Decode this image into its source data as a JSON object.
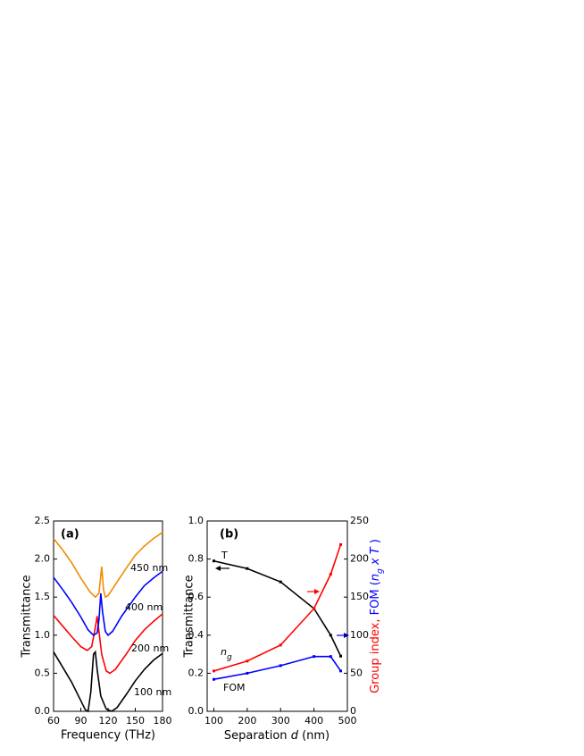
{
  "chart_data": [
    {
      "type": "line",
      "panel_label": "(a)",
      "xlabel": "Frequency (THz)",
      "ylabel": "Transmittance",
      "xlim": [
        60,
        180
      ],
      "xticks": [
        60,
        90,
        120,
        150,
        180
      ],
      "ylim": [
        0,
        2.5
      ],
      "yticks": [
        {
          "value": 0,
          "label": "0.0"
        },
        {
          "value": 0.5,
          "label": "0.5"
        },
        {
          "value": 1,
          "label": "1.0"
        },
        {
          "value": 1.5,
          "label": "1.5"
        },
        {
          "value": 2,
          "label": "2.0"
        },
        {
          "value": 2.5,
          "label": "2.5"
        }
      ],
      "series": [
        {
          "name": "100 nm",
          "color": "#000000",
          "x": [
            60,
            70,
            80,
            90,
            95,
            98,
            101,
            104,
            106,
            108,
            112,
            118,
            124,
            130,
            140,
            150,
            160,
            170,
            180
          ],
          "values": [
            0.78,
            0.58,
            0.38,
            0.14,
            0.02,
            0.0,
            0.25,
            0.75,
            0.78,
            0.55,
            0.2,
            0.03,
            0.0,
            0.05,
            0.22,
            0.4,
            0.55,
            0.67,
            0.76
          ]
        },
        {
          "name": "200 nm",
          "color": "#ff0000",
          "x": [
            60,
            70,
            80,
            90,
            97,
            102,
            106,
            108,
            110,
            113,
            118,
            122,
            128,
            140,
            150,
            160,
            170,
            180
          ],
          "values": [
            1.26,
            1.12,
            0.98,
            0.85,
            0.8,
            0.85,
            1.1,
            1.25,
            1.05,
            0.75,
            0.53,
            0.5,
            0.55,
            0.75,
            0.93,
            1.07,
            1.18,
            1.28
          ]
        },
        {
          "name": "400 nm",
          "color": "#0000ff",
          "x": [
            60,
            70,
            80,
            90,
            98,
            104,
            108,
            110,
            112,
            114,
            117,
            120,
            125,
            135,
            150,
            160,
            170,
            180
          ],
          "values": [
            1.76,
            1.6,
            1.43,
            1.24,
            1.07,
            1.0,
            1.03,
            1.2,
            1.55,
            1.3,
            1.05,
            1.0,
            1.05,
            1.25,
            1.5,
            1.65,
            1.75,
            1.84
          ]
        },
        {
          "name": "450 nm",
          "color": "#f28c00",
          "x": [
            60,
            70,
            80,
            90,
            100,
            106,
            110,
            113,
            115,
            117,
            120,
            130,
            140,
            150,
            160,
            170,
            180
          ],
          "values": [
            2.27,
            2.12,
            1.95,
            1.75,
            1.57,
            1.5,
            1.55,
            1.9,
            1.6,
            1.5,
            1.52,
            1.7,
            1.88,
            2.05,
            2.17,
            2.27,
            2.35
          ]
        }
      ]
    },
    {
      "type": "line",
      "panel_label": "(b)",
      "xlabel_parts": [
        "Separation ",
        "d",
        " (nm)"
      ],
      "ylabel": "Transmittance",
      "y2label_parts": [
        "Group index, ",
        "FOM (",
        "n",
        "g",
        " x ",
        "T",
        " )"
      ],
      "y2label_colors": [
        "#ff0000",
        "#0000ff",
        "#0000ff",
        "#0000ff",
        "#0000ff",
        "#0000ff",
        "#0000ff"
      ],
      "xlim": [
        80,
        500
      ],
      "xticks": [
        100,
        200,
        300,
        400,
        500
      ],
      "ylim": [
        0,
        1
      ],
      "yticks": [
        {
          "value": 0,
          "label": "0.0"
        },
        {
          "value": 0.2,
          "label": "0.2"
        },
        {
          "value": 0.4,
          "label": "0.4"
        },
        {
          "value": 0.6,
          "label": "0.6"
        },
        {
          "value": 0.8,
          "label": "0.8"
        },
        {
          "value": 1,
          "label": "1.0"
        }
      ],
      "y2lim": [
        0,
        250
      ],
      "y2ticks": [
        0,
        50,
        100,
        150,
        200,
        250
      ],
      "markers": true,
      "x": [
        100,
        200,
        300,
        400,
        450,
        480
      ],
      "series": [
        {
          "name": "T",
          "color": "#000000",
          "values": [
            0.79,
            0.75,
            0.68,
            0.54,
            0.4,
            0.29
          ]
        },
        {
          "name": "n",
          "name_subscript": "g",
          "color": "#ff0000",
          "axis": "y2",
          "values": [
            53,
            66,
            87,
            135,
            180,
            219
          ]
        },
        {
          "name": "FOM",
          "color": "#0000ff",
          "axis": "y2",
          "values": [
            42,
            50,
            60,
            72,
            72,
            53
          ]
        }
      ]
    }
  ]
}
